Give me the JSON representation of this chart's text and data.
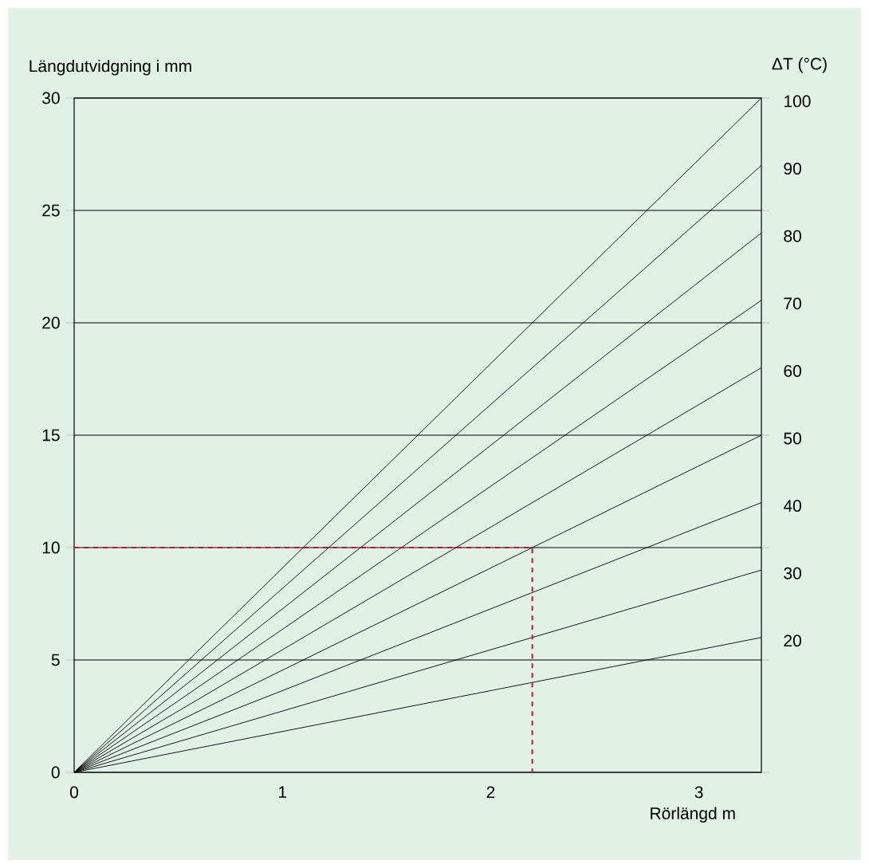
{
  "chart_data": {
    "type": "line",
    "xlabel": "Rörlängd m",
    "ylabel": "Längdutvidgning i mm",
    "y2label": "ΔT (°C)",
    "xlim": [
      0,
      3.3
    ],
    "ylim": [
      0,
      30
    ],
    "xticks": [
      0,
      1,
      2,
      3
    ],
    "yticks": [
      0,
      5,
      10,
      15,
      20,
      25,
      30
    ],
    "grid": "y",
    "marker": "none",
    "series": [
      {
        "name": "100",
        "color": "#000000",
        "x": [
          0,
          3.3
        ],
        "values": [
          0,
          30
        ]
      },
      {
        "name": "90",
        "color": "#000000",
        "x": [
          0,
          3.3
        ],
        "values": [
          0,
          27
        ]
      },
      {
        "name": "80",
        "color": "#000000",
        "x": [
          0,
          3.3
        ],
        "values": [
          0,
          24
        ]
      },
      {
        "name": "70",
        "color": "#000000",
        "x": [
          0,
          3.3
        ],
        "values": [
          0,
          21
        ]
      },
      {
        "name": "60",
        "color": "#000000",
        "x": [
          0,
          3.3
        ],
        "values": [
          0,
          18
        ]
      },
      {
        "name": "50",
        "color": "#000000",
        "x": [
          0,
          3.3
        ],
        "values": [
          0,
          15
        ]
      },
      {
        "name": "40",
        "color": "#000000",
        "x": [
          0,
          3.3
        ],
        "values": [
          0,
          12
        ]
      },
      {
        "name": "30",
        "color": "#000000",
        "x": [
          0,
          3.3
        ],
        "values": [
          0,
          9
        ]
      },
      {
        "name": "20",
        "color": "#000000",
        "x": [
          0,
          3.3
        ],
        "values": [
          0,
          6
        ]
      },
      {
        "color": "#c8102e",
        "x": [
          0,
          2.2,
          2.2
        ],
        "values": [
          10,
          10,
          0
        ],
        "line_style": "dashed"
      }
    ]
  }
}
